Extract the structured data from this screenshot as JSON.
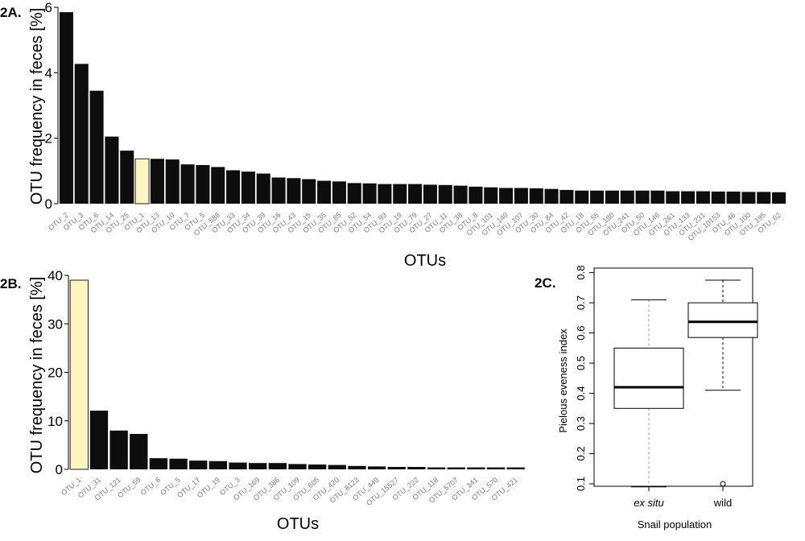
{
  "colors": {
    "bar": "#0d0d0d",
    "highlight": "#fbf6bf",
    "axis": "#000000",
    "tick_label": "#7a7a7a"
  },
  "panels": {
    "a": "2A.",
    "b": "2B.",
    "c": "2C."
  },
  "chart_data": [
    {
      "type": "bar",
      "ylabel": "OTU frequency in feces [%]",
      "xlabel": "OTUs",
      "ylim": [
        0,
        6
      ],
      "yticks": [
        0,
        2,
        4,
        6
      ],
      "highlight": "OTU_1",
      "categories": [
        "OTU_2",
        "OTU_3",
        "OTU_6",
        "OTU_14",
        "OTU_25",
        "OTU_1",
        "OTU_13",
        "OTU_10",
        "OTU_7",
        "OTU_5",
        "OTU_588",
        "OTU_33",
        "OTU_34",
        "OTU_39",
        "OTU_16",
        "OTU_43",
        "OTU_15",
        "OTU_35",
        "OTU_85",
        "OTU_52",
        "OTU_54",
        "OTU_93",
        "OTU_19",
        "OTU_79",
        "OTU_27",
        "OTU_11",
        "OTU_38",
        "OTU_8",
        "OTU_101",
        "OTU_140",
        "OTU_107",
        "OTU_30",
        "OTU_84",
        "OTU_42",
        "OTU_18",
        "OTU_55",
        "OTU_180",
        "OTU_241",
        "OTU_50",
        "OTU_146",
        "OTU_261",
        "OTU_133",
        "OTU_231",
        "OTU_10153",
        "OTU_46",
        "OTU_100",
        "OTU_195",
        "OTU_62"
      ],
      "values": [
        5.85,
        4.27,
        3.45,
        2.05,
        1.62,
        1.37,
        1.37,
        1.35,
        1.2,
        1.18,
        1.12,
        1.02,
        0.98,
        0.92,
        0.8,
        0.78,
        0.75,
        0.7,
        0.68,
        0.63,
        0.62,
        0.6,
        0.6,
        0.6,
        0.58,
        0.57,
        0.55,
        0.52,
        0.5,
        0.48,
        0.48,
        0.47,
        0.45,
        0.42,
        0.4,
        0.4,
        0.4,
        0.4,
        0.4,
        0.4,
        0.38,
        0.38,
        0.38,
        0.37,
        0.37,
        0.36,
        0.36,
        0.35
      ]
    },
    {
      "type": "bar",
      "ylabel": "OTU frequency in feces [%]",
      "xlabel": "OTUs",
      "ylim": [
        0,
        40
      ],
      "yticks": [
        0,
        10,
        20,
        30,
        40
      ],
      "highlight": "OTU_1",
      "categories": [
        "OTU_1",
        "OTU_31",
        "OTU_121",
        "OTU_59",
        "OTU_6",
        "OTU_5",
        "OTU_17",
        "OTU_19",
        "OTU_3",
        "OTU_169",
        "OTU_386",
        "OTU_109",
        "OTU_605",
        "OTU_420",
        "OTU_8123",
        "OTU_449",
        "OTU_15527",
        "OTU_222",
        "OTU_118",
        "OTU_5707",
        "OTU_141",
        "OTU_570",
        "OTU_421"
      ],
      "values": [
        39.0,
        12.1,
        8.0,
        7.3,
        2.3,
        2.2,
        1.8,
        1.7,
        1.4,
        1.3,
        1.3,
        1.1,
        1.0,
        0.9,
        0.7,
        0.6,
        0.5,
        0.5,
        0.4,
        0.4,
        0.4,
        0.4,
        0.4
      ]
    },
    {
      "type": "boxplot",
      "ylabel": "Pielous eveness index",
      "xlabel": "Snail population",
      "ylim": [
        0.1,
        0.8
      ],
      "yticks": [
        0.1,
        0.2,
        0.3,
        0.4,
        0.5,
        0.6,
        0.7,
        0.8
      ],
      "categories": [
        "ex situ",
        "wild"
      ],
      "boxes": [
        {
          "name": "ex situ",
          "min": 0.09,
          "q1": 0.35,
          "median": 0.42,
          "q3": 0.55,
          "max": 0.71,
          "outliers": []
        },
        {
          "name": "wild",
          "min": 0.41,
          "q1": 0.585,
          "median": 0.637,
          "q3": 0.7,
          "max": 0.775,
          "outliers": [
            0.1
          ]
        }
      ]
    }
  ]
}
